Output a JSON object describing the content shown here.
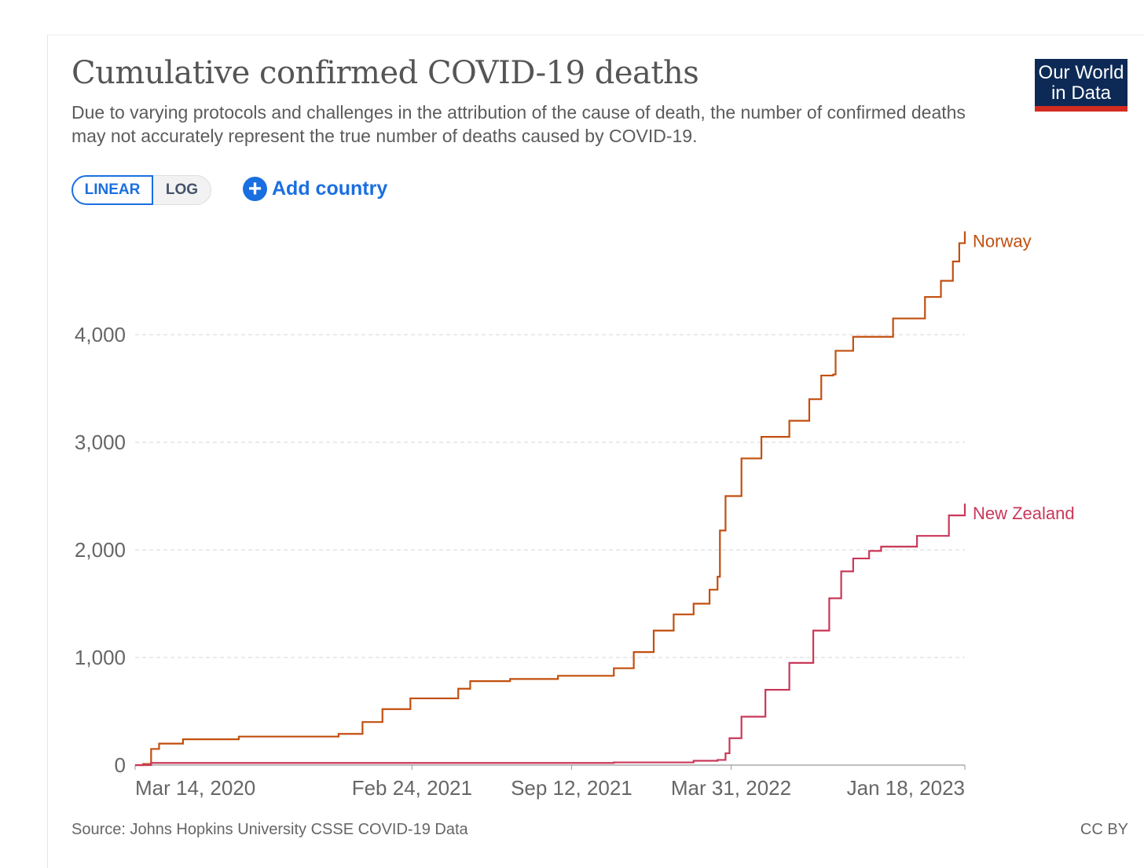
{
  "header": {
    "title": "Cumulative confirmed COVID-19 deaths",
    "subtitle": "Due to varying protocols and challenges in the attribution of the cause of death, the number of confirmed deaths may not accurately represent the true number of deaths caused by COVID-19.",
    "logo_line1": "Our World",
    "logo_line2": "in Data"
  },
  "controls": {
    "linear": "LINEAR",
    "log": "LOG",
    "add_country": "Add country"
  },
  "footer": {
    "source": "Source: Johns Hopkins University CSSE COVID-19 Data",
    "license": "CC BY"
  },
  "colors": {
    "Norway": "#c24f0f",
    "New Zealand": "#c9385a",
    "grid": "#dddddd"
  },
  "chart_data": {
    "type": "line",
    "title": "Cumulative confirmed COVID-19 deaths",
    "xlabel": "",
    "ylabel": "",
    "x_unit": "days since Mar 14, 2020",
    "xlim": [
      0,
      1040
    ],
    "ylim": [
      0,
      5000
    ],
    "yticks": [
      0,
      1000,
      2000,
      3000,
      4000
    ],
    "ytick_labels": [
      "0",
      "1,000",
      "2,000",
      "3,000",
      "4,000"
    ],
    "xticks": [
      0,
      347,
      547,
      747,
      1040
    ],
    "xtick_labels": [
      "Mar 14, 2020",
      "Feb 24, 2021",
      "Sep 12, 2021",
      "Mar 31, 2022",
      "Jan 18, 2023"
    ],
    "grid": "horizontal dashed",
    "series": [
      {
        "name": "Norway",
        "x": [
          0,
          10,
          20,
          30,
          60,
          130,
          255,
          285,
          310,
          345,
          405,
          420,
          470,
          530,
          600,
          625,
          650,
          675,
          700,
          720,
          730,
          733,
          740,
          760,
          785,
          820,
          845,
          860,
          875,
          878,
          900,
          950,
          990,
          1010,
          1025,
          1033,
          1040
        ],
        "y": [
          0,
          10,
          150,
          200,
          240,
          265,
          290,
          400,
          520,
          620,
          710,
          780,
          800,
          830,
          900,
          1050,
          1250,
          1400,
          1500,
          1630,
          1750,
          2180,
          2500,
          2850,
          3050,
          3200,
          3400,
          3620,
          3630,
          3850,
          3980,
          4150,
          4350,
          4500,
          4680,
          4850,
          4960
        ]
      },
      {
        "name": "New Zealand",
        "x": [
          0,
          20,
          600,
          700,
          730,
          740,
          745,
          760,
          790,
          820,
          850,
          870,
          885,
          900,
          920,
          935,
          980,
          1020,
          1040
        ],
        "y": [
          0,
          20,
          25,
          40,
          48,
          110,
          250,
          450,
          700,
          950,
          1250,
          1550,
          1800,
          1920,
          1990,
          2030,
          2130,
          2320,
          2430
        ]
      }
    ]
  }
}
